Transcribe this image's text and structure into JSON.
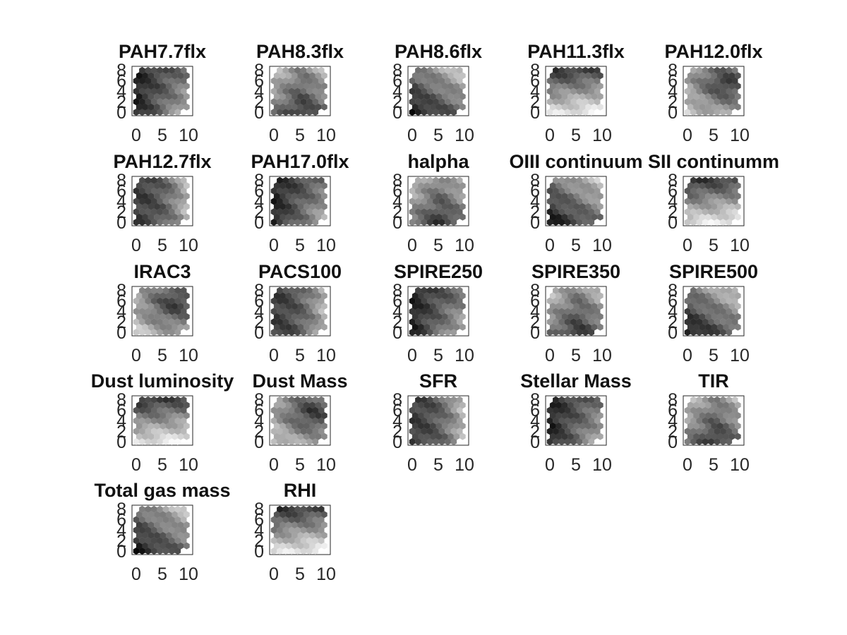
{
  "figure": {
    "type": "heatmap",
    "description_style": "self-organizing map component planes, grayscale hexagonal grids"
  },
  "chart_data": {
    "type": "heatmap",
    "grid": "hexagonal",
    "colormap": "gray",
    "xlim": [
      0,
      10
    ],
    "ylim": [
      0,
      8
    ],
    "xticks": [
      "0",
      "5",
      "10"
    ],
    "yticks": [
      "0",
      "2",
      "4",
      "6",
      "8"
    ],
    "panels": [
      {
        "title": "PAH7.7flx"
      },
      {
        "title": "PAH8.3flx"
      },
      {
        "title": "PAH8.6flx"
      },
      {
        "title": "PAH11.3flx"
      },
      {
        "title": "PAH12.0flx"
      },
      {
        "title": "PAH12.7flx"
      },
      {
        "title": "PAH17.0flx"
      },
      {
        "title": "halpha"
      },
      {
        "title": "OIII continuum"
      },
      {
        "title": "SII continumm"
      },
      {
        "title": "IRAC3"
      },
      {
        "title": "PACS100"
      },
      {
        "title": "SPIRE250"
      },
      {
        "title": "SPIRE350"
      },
      {
        "title": "SPIRE500"
      },
      {
        "title": "Dust luminosity"
      },
      {
        "title": "Dust Mass"
      },
      {
        "title": "SFR"
      },
      {
        "title": "Stellar Mass"
      },
      {
        "title": "TIR"
      },
      {
        "title": "Total gas mass"
      },
      {
        "title": "RHI"
      }
    ]
  }
}
